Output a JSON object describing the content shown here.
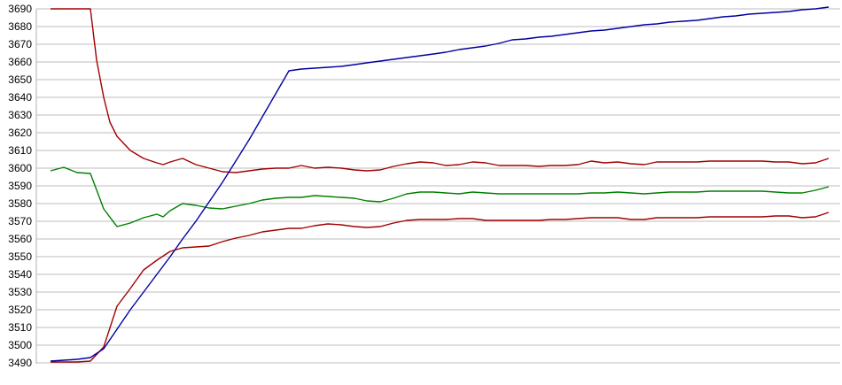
{
  "chart_data": {
    "type": "line",
    "title": "",
    "xlabel": "",
    "ylabel": "",
    "x_tick_labels_visible": false,
    "ylim": [
      3490,
      3690
    ],
    "y_tick_step": 10,
    "y_ticks": [
      3690,
      3680,
      3670,
      3660,
      3650,
      3640,
      3630,
      3620,
      3610,
      3600,
      3590,
      3580,
      3570,
      3560,
      3550,
      3540,
      3530,
      3520,
      3510,
      3500,
      3490
    ],
    "grid": "horizontal",
    "legend": "none",
    "colors": {
      "background": "#ffffff",
      "grid": "#bebebe",
      "axis": "#b0b0b0",
      "tick_text": "#000000",
      "blue_series": "#0000a0",
      "red_series": "#a00000",
      "green_series": "#008000"
    },
    "series": [
      {
        "name": "upper-red",
        "color": "#a00000",
        "points": [
          [
            57,
            3690
          ],
          [
            72,
            3690
          ],
          [
            87,
            3690
          ],
          [
            102,
            3690
          ],
          [
            109,
            3661
          ],
          [
            117,
            3640
          ],
          [
            124,
            3626
          ],
          [
            132,
            3618
          ],
          [
            147,
            3610
          ],
          [
            162,
            3605.5
          ],
          [
            177,
            3603
          ],
          [
            184,
            3602
          ],
          [
            192,
            3603.5
          ],
          [
            206,
            3605.5
          ],
          [
            221,
            3602
          ],
          [
            236,
            3600
          ],
          [
            251,
            3598
          ],
          [
            266,
            3597.5
          ],
          [
            281,
            3598.5
          ],
          [
            296,
            3599.5
          ],
          [
            311,
            3600
          ],
          [
            326,
            3600
          ],
          [
            340,
            3601.5
          ],
          [
            355,
            3600
          ],
          [
            370,
            3600.5
          ],
          [
            385,
            3600
          ],
          [
            400,
            3599
          ],
          [
            414,
            3598.5
          ],
          [
            429,
            3599
          ],
          [
            444,
            3601
          ],
          [
            459,
            3602.5
          ],
          [
            474,
            3603.5
          ],
          [
            489,
            3603
          ],
          [
            503,
            3601.5
          ],
          [
            518,
            3602
          ],
          [
            533,
            3603.5
          ],
          [
            548,
            3603
          ],
          [
            563,
            3601.5
          ],
          [
            578,
            3601.5
          ],
          [
            593,
            3601.5
          ],
          [
            608,
            3601
          ],
          [
            622,
            3601.5
          ],
          [
            637,
            3601.5
          ],
          [
            652,
            3602
          ],
          [
            667,
            3604
          ],
          [
            682,
            3603
          ],
          [
            697,
            3603.5
          ],
          [
            712,
            3602.5
          ],
          [
            727,
            3602
          ],
          [
            741,
            3603.5
          ],
          [
            756,
            3603.5
          ],
          [
            771,
            3603.5
          ],
          [
            786,
            3603.5
          ],
          [
            801,
            3604
          ],
          [
            816,
            3604
          ],
          [
            830,
            3604
          ],
          [
            845,
            3604
          ],
          [
            860,
            3604
          ],
          [
            875,
            3603.5
          ],
          [
            890,
            3603.5
          ],
          [
            905,
            3602.5
          ],
          [
            920,
            3603
          ],
          [
            935,
            3605.5
          ]
        ]
      },
      {
        "name": "green",
        "color": "#008000",
        "points": [
          [
            57,
            3598.5
          ],
          [
            72,
            3600.5
          ],
          [
            87,
            3597.5
          ],
          [
            102,
            3597
          ],
          [
            117,
            3577
          ],
          [
            132,
            3567
          ],
          [
            147,
            3569
          ],
          [
            162,
            3572
          ],
          [
            177,
            3574
          ],
          [
            184,
            3572.5
          ],
          [
            192,
            3576
          ],
          [
            206,
            3580
          ],
          [
            221,
            3579
          ],
          [
            236,
            3577.5
          ],
          [
            251,
            3577
          ],
          [
            266,
            3578.5
          ],
          [
            281,
            3580
          ],
          [
            296,
            3582
          ],
          [
            311,
            3583
          ],
          [
            326,
            3583.5
          ],
          [
            340,
            3583.5
          ],
          [
            355,
            3584.5
          ],
          [
            370,
            3584
          ],
          [
            385,
            3583.5
          ],
          [
            400,
            3583
          ],
          [
            414,
            3581.5
          ],
          [
            429,
            3581
          ],
          [
            444,
            3583
          ],
          [
            459,
            3585.5
          ],
          [
            474,
            3586.5
          ],
          [
            489,
            3586.5
          ],
          [
            503,
            3586
          ],
          [
            518,
            3585.5
          ],
          [
            533,
            3586.5
          ],
          [
            548,
            3586
          ],
          [
            563,
            3585.5
          ],
          [
            578,
            3585.5
          ],
          [
            593,
            3585.5
          ],
          [
            608,
            3585.5
          ],
          [
            622,
            3585.5
          ],
          [
            637,
            3585.5
          ],
          [
            652,
            3585.5
          ],
          [
            667,
            3586
          ],
          [
            682,
            3586
          ],
          [
            697,
            3586.5
          ],
          [
            712,
            3586
          ],
          [
            727,
            3585.5
          ],
          [
            741,
            3586
          ],
          [
            756,
            3586.5
          ],
          [
            771,
            3586.5
          ],
          [
            786,
            3586.5
          ],
          [
            801,
            3587
          ],
          [
            816,
            3587
          ],
          [
            830,
            3587
          ],
          [
            845,
            3587
          ],
          [
            860,
            3587
          ],
          [
            875,
            3586.5
          ],
          [
            890,
            3586
          ],
          [
            905,
            3586
          ],
          [
            920,
            3587.5
          ],
          [
            935,
            3589.5
          ]
        ]
      },
      {
        "name": "lower-red",
        "color": "#a00000",
        "points": [
          [
            57,
            3490.5
          ],
          [
            72,
            3490.5
          ],
          [
            87,
            3490.5
          ],
          [
            102,
            3491
          ],
          [
            117,
            3499
          ],
          [
            132,
            3522
          ],
          [
            147,
            3532
          ],
          [
            162,
            3542.5
          ],
          [
            177,
            3548
          ],
          [
            192,
            3553
          ],
          [
            206,
            3555
          ],
          [
            221,
            3555.5
          ],
          [
            236,
            3556
          ],
          [
            251,
            3558.5
          ],
          [
            266,
            3560.5
          ],
          [
            281,
            3562
          ],
          [
            296,
            3564
          ],
          [
            311,
            3565
          ],
          [
            326,
            3566
          ],
          [
            340,
            3566
          ],
          [
            355,
            3567.5
          ],
          [
            370,
            3568.5
          ],
          [
            385,
            3568
          ],
          [
            400,
            3567
          ],
          [
            414,
            3566.5
          ],
          [
            429,
            3567
          ],
          [
            444,
            3569
          ],
          [
            459,
            3570.5
          ],
          [
            474,
            3571
          ],
          [
            489,
            3571
          ],
          [
            503,
            3571
          ],
          [
            518,
            3571.5
          ],
          [
            533,
            3571.5
          ],
          [
            548,
            3570.5
          ],
          [
            563,
            3570.5
          ],
          [
            578,
            3570.5
          ],
          [
            593,
            3570.5
          ],
          [
            608,
            3570.5
          ],
          [
            622,
            3571
          ],
          [
            637,
            3571
          ],
          [
            652,
            3571.5
          ],
          [
            667,
            3572
          ],
          [
            682,
            3572
          ],
          [
            697,
            3572
          ],
          [
            712,
            3571
          ],
          [
            727,
            3571
          ],
          [
            741,
            3572
          ],
          [
            756,
            3572
          ],
          [
            771,
            3572
          ],
          [
            786,
            3572
          ],
          [
            801,
            3572.5
          ],
          [
            816,
            3572.5
          ],
          [
            830,
            3572.5
          ],
          [
            845,
            3572.5
          ],
          [
            860,
            3572.5
          ],
          [
            875,
            3573
          ],
          [
            890,
            3573
          ],
          [
            905,
            3572
          ],
          [
            920,
            3572.5
          ],
          [
            935,
            3575
          ]
        ]
      },
      {
        "name": "blue",
        "color": "#0000a0",
        "points": [
          [
            57,
            3491
          ],
          [
            72,
            3491.5
          ],
          [
            87,
            3492
          ],
          [
            102,
            3493
          ],
          [
            117,
            3498
          ],
          [
            132,
            3509
          ],
          [
            147,
            3520
          ],
          [
            162,
            3530
          ],
          [
            177,
            3540
          ],
          [
            192,
            3550
          ],
          [
            206,
            3560
          ],
          [
            221,
            3570
          ],
          [
            236,
            3581
          ],
          [
            251,
            3592
          ],
          [
            266,
            3604
          ],
          [
            281,
            3616
          ],
          [
            296,
            3629
          ],
          [
            311,
            3642
          ],
          [
            326,
            3655
          ],
          [
            340,
            3656
          ],
          [
            355,
            3656.5
          ],
          [
            370,
            3657
          ],
          [
            385,
            3657.5
          ],
          [
            400,
            3658.5
          ],
          [
            414,
            3659.5
          ],
          [
            429,
            3660.5
          ],
          [
            444,
            3661.5
          ],
          [
            459,
            3662.5
          ],
          [
            474,
            3663.5
          ],
          [
            489,
            3664.5
          ],
          [
            503,
            3665.5
          ],
          [
            518,
            3667
          ],
          [
            533,
            3668
          ],
          [
            548,
            3669
          ],
          [
            563,
            3670.5
          ],
          [
            578,
            3672.5
          ],
          [
            593,
            3673
          ],
          [
            608,
            3674
          ],
          [
            622,
            3674.5
          ],
          [
            637,
            3675.5
          ],
          [
            652,
            3676.5
          ],
          [
            667,
            3677.5
          ],
          [
            682,
            3678
          ],
          [
            697,
            3679
          ],
          [
            712,
            3680
          ],
          [
            727,
            3681
          ],
          [
            741,
            3681.5
          ],
          [
            756,
            3682.5
          ],
          [
            771,
            3683
          ],
          [
            786,
            3683.5
          ],
          [
            801,
            3684.5
          ],
          [
            816,
            3685.5
          ],
          [
            830,
            3686
          ],
          [
            845,
            3687
          ],
          [
            860,
            3687.5
          ],
          [
            875,
            3688
          ],
          [
            890,
            3688.5
          ],
          [
            905,
            3689.5
          ],
          [
            920,
            3690
          ],
          [
            935,
            3691
          ]
        ]
      }
    ]
  }
}
